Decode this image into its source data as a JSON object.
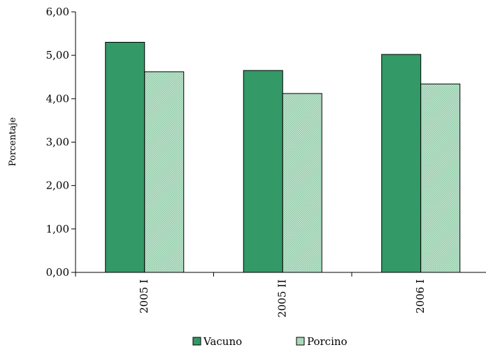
{
  "chart_data": {
    "type": "bar",
    "categories": [
      "2005 I",
      "2005 II",
      "2006 I"
    ],
    "series": [
      {
        "name": "Vacuno",
        "values": [
          5.3,
          4.65,
          5.02
        ],
        "color": "#339966"
      },
      {
        "name": "Porcino",
        "values": [
          4.62,
          4.12,
          4.34
        ],
        "color": "#a8d8bc"
      }
    ],
    "ylabel": "Porcentaje",
    "xlabel": "",
    "ylim": [
      0,
      6
    ],
    "y_ticks": [
      "0,00",
      "1,00",
      "2,00",
      "3,00",
      "4,00",
      "5,00",
      "6,00"
    ],
    "grid": false,
    "legend_position": "bottom"
  }
}
